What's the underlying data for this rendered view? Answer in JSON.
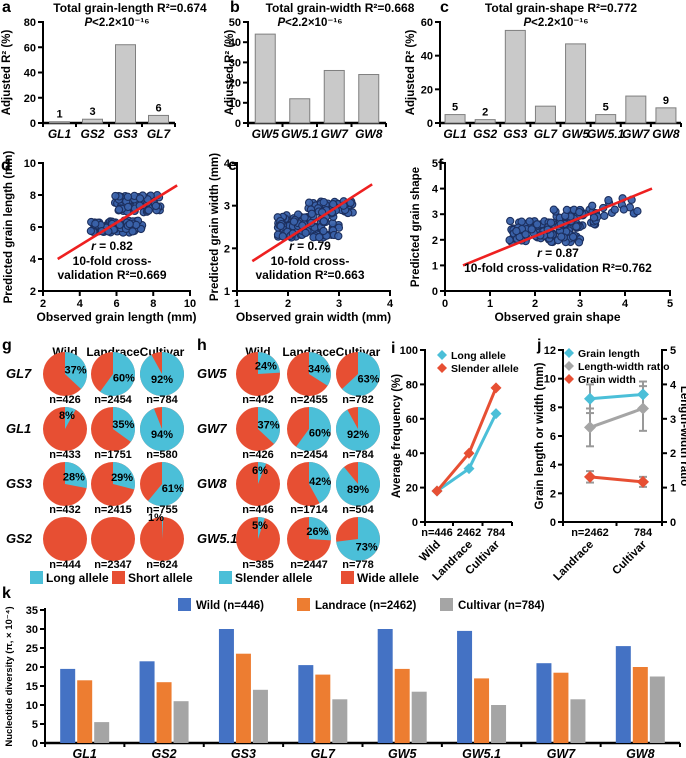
{
  "figure": {
    "letters": {
      "a": "a",
      "b": "b",
      "c": "c",
      "d": "d",
      "e": "e",
      "f": "f",
      "g": "g",
      "h": "h",
      "i": "i",
      "j": "j",
      "k": "k"
    }
  },
  "colors": {
    "cyan": "#4bbfd8",
    "red": "#e74f33",
    "bar_fill": "#c9c9c9",
    "bar_edge": "#7f7f7f",
    "scatter_fill": "#3a62aa",
    "scatter_edge": "#1c2f5e",
    "fit_line": "#ee2020",
    "kblue": "#4472c4",
    "korange": "#ed7d31",
    "kgray": "#a5a5a5",
    "err": "#999999"
  },
  "chart_data": [
    {
      "id": "a",
      "type": "bar",
      "title": "Total grain-length R²=0.674",
      "pvalue": "P<2.2×10⁻¹⁶",
      "ylabel": "Adjusted R² (%)",
      "ylim": [
        0,
        80
      ],
      "yticks": [
        0,
        20,
        40,
        60,
        80
      ],
      "categories": [
        "GL1",
        "GS2",
        "GS3",
        "GL7"
      ],
      "values": [
        1,
        3,
        62,
        6
      ],
      "bar_labels": [
        "1",
        "3",
        "",
        "6"
      ]
    },
    {
      "id": "b",
      "type": "bar",
      "title": "Total grain-width R²=0.668",
      "pvalue": "P<2.2×10⁻¹⁶",
      "ylabel": "Adjusted R² (%)",
      "ylim": [
        0,
        50
      ],
      "yticks": [
        0,
        10,
        20,
        30,
        40,
        50
      ],
      "categories": [
        "GW5",
        "GW5.1",
        "GW7",
        "GW8"
      ],
      "values": [
        44,
        12,
        26,
        24
      ],
      "bar_labels": [
        "",
        "",
        "",
        ""
      ]
    },
    {
      "id": "c",
      "type": "bar",
      "title": "Total grain-shape R²=0.772",
      "pvalue": "P<2.2×10⁻¹⁶",
      "ylabel": "Adjusted R² (%)",
      "ylim": [
        0,
        60
      ],
      "yticks": [
        0,
        20,
        40,
        60
      ],
      "categories": [
        "GL1",
        "GS2",
        "GS3",
        "GL7",
        "GW5",
        "GW5.1",
        "GW7",
        "GW8"
      ],
      "values": [
        5,
        2,
        55,
        10,
        47,
        5,
        16,
        9
      ],
      "bar_labels": [
        "5",
        "2",
        "",
        "",
        "",
        "5",
        "",
        "9"
      ]
    },
    {
      "id": "d",
      "type": "scatter",
      "xlabel": "Observed grain length (mm)",
      "ylabel": "Predicted grain length (mm)",
      "xlim": [
        2,
        10
      ],
      "ylim": [
        2,
        10
      ],
      "xticks": [
        2,
        4,
        6,
        8,
        10
      ],
      "yticks": [
        2,
        4,
        6,
        8,
        10
      ],
      "r_label": "r = 0.82",
      "cv_lines": [
        "10-fold cross-",
        "validation R²=0.669"
      ],
      "fit_line": [
        [
          2.8,
          4.0
        ],
        [
          9.3,
          8.6
        ]
      ],
      "seed": 11,
      "clusters": [
        {
          "n": 100,
          "x": [
            4.6,
            7.4
          ],
          "y": [
            5.65,
            6.4
          ]
        },
        {
          "n": 60,
          "x": [
            5.9,
            8.4
          ],
          "y": [
            6.9,
            8.0
          ]
        }
      ]
    },
    {
      "id": "e",
      "type": "scatter",
      "xlabel": "Observed grain width (mm)",
      "ylabel": "Predicted grain width (mm)",
      "xlim": [
        1,
        4
      ],
      "ylim": [
        1,
        4
      ],
      "xticks": [
        1,
        2,
        3,
        4
      ],
      "yticks": [
        1,
        2,
        3,
        4
      ],
      "r_label": "r = 0.79",
      "cv_lines": [
        "10-fold cross-",
        "validation R²=0.663"
      ],
      "fit_line": [
        [
          1.3,
          1.7
        ],
        [
          3.65,
          3.5
        ]
      ],
      "seed": 22,
      "clusters": [
        {
          "n": 105,
          "x": [
            1.8,
            3.0
          ],
          "y": [
            2.25,
            2.8
          ]
        },
        {
          "n": 50,
          "x": [
            2.4,
            3.3
          ],
          "y": [
            2.8,
            3.12
          ]
        },
        {
          "n": 5,
          "x": [
            1.72,
            1.95
          ],
          "y": [
            2.5,
            2.75
          ]
        }
      ]
    },
    {
      "id": "f",
      "type": "scatter",
      "xlabel": "Observed grain shape",
      "ylabel": "Predicted grain shape",
      "xlim": [
        0,
        5
      ],
      "ylim": [
        0,
        5
      ],
      "xticks": [
        0,
        1,
        2,
        3,
        4,
        5
      ],
      "yticks": [
        0,
        1,
        2,
        3,
        4,
        5
      ],
      "r_label": "r = 0.87",
      "cv_lines": [
        "10-fold cross-validation R²=0.762"
      ],
      "fit_line": [
        [
          0.4,
          1.0
        ],
        [
          4.6,
          4.0
        ]
      ],
      "seed": 33,
      "clusters": [
        {
          "n": 115,
          "x": [
            1.4,
            3.0
          ],
          "y": [
            1.9,
            2.75
          ]
        },
        {
          "n": 45,
          "x": [
            2.4,
            3.4
          ],
          "y": [
            2.5,
            3.2
          ]
        },
        {
          "n": 16,
          "x": [
            3.2,
            4.45
          ],
          "y": [
            2.85,
            3.65
          ]
        }
      ]
    },
    {
      "id": "g",
      "type": "pie_grid",
      "columns": [
        "Wild",
        "Landrace",
        "Cultivar"
      ],
      "rows": [
        {
          "gene": "GL7",
          "pct": [
            37,
            60,
            92
          ],
          "n": [
            "n=426",
            "n=2454",
            "n=784"
          ]
        },
        {
          "gene": "GL1",
          "pct": [
            8,
            35,
            94
          ],
          "n": [
            "n=433",
            "n=1751",
            "n=580"
          ]
        },
        {
          "gene": "GS3",
          "pct": [
            28,
            29,
            61
          ],
          "n": [
            "n=432",
            "n=2415",
            "n=755"
          ]
        },
        {
          "gene": "GS2",
          "pct": [
            0,
            0,
            1
          ],
          "n": [
            "n=444",
            "n=2347",
            "n=624"
          ]
        }
      ],
      "legend": [
        {
          "label": "Long allele",
          "color_key": "cyan"
        },
        {
          "label": "Short allele",
          "color_key": "red"
        }
      ]
    },
    {
      "id": "h",
      "type": "pie_grid",
      "columns": [
        "Wild",
        "Landrace",
        "Cultivar"
      ],
      "rows": [
        {
          "gene": "GW5",
          "pct": [
            24,
            34,
            63
          ],
          "n": [
            "n=442",
            "n=2455",
            "n=782"
          ]
        },
        {
          "gene": "GW7",
          "pct": [
            37,
            60,
            92
          ],
          "n": [
            "n=426",
            "n=2454",
            "n=784"
          ]
        },
        {
          "gene": "GW8",
          "pct": [
            6,
            42,
            89
          ],
          "n": [
            "n=446",
            "n=1714",
            "n=504"
          ]
        },
        {
          "gene": "GW5.1",
          "pct": [
            5,
            26,
            73
          ],
          "n": [
            "n=385",
            "n=2447",
            "n=778"
          ]
        }
      ],
      "legend": [
        {
          "label": "Slender allele",
          "color_key": "cyan"
        },
        {
          "label": "Wide allele",
          "color_key": "red"
        }
      ]
    },
    {
      "id": "i",
      "type": "line",
      "ylabel": "Average frequency (%)",
      "ylim": [
        0,
        100
      ],
      "yticks": [
        0,
        20,
        40,
        60,
        80,
        100
      ],
      "x_n_labels": [
        "n=446",
        "2462",
        "784"
      ],
      "x_cat_labels": [
        "Wild",
        "Landrace",
        "Cultivar"
      ],
      "series": [
        {
          "name": "Long allele",
          "color_key": "cyan",
          "values": [
            18,
            31,
            63
          ]
        },
        {
          "name": "Slender allele",
          "color_key": "red",
          "values": [
            18,
            40,
            78
          ]
        }
      ]
    },
    {
      "id": "j",
      "type": "errline",
      "ylabel_left": "Grain length or width (mm)",
      "ylabel_right": "Length-width ratio",
      "ylim_left": [
        0,
        12
      ],
      "yticks_left": [
        0,
        2,
        4,
        6,
        8,
        10,
        12
      ],
      "ylim_right": [
        0,
        5
      ],
      "yticks_right": [
        0,
        1,
        2,
        3,
        4,
        5
      ],
      "x_n_labels": [
        "n=2462",
        "784"
      ],
      "x_cat_labels": [
        "Landrace",
        "Cultivar"
      ],
      "series": [
        {
          "name": "Grain length",
          "color_key": "cyan",
          "axis": "left",
          "values": [
            8.6,
            8.9
          ],
          "errors": [
            1.0,
            0.9
          ]
        },
        {
          "name": "Length-width ratio",
          "color_key": "kgray",
          "axis": "right",
          "values": [
            2.75,
            3.3
          ],
          "errors": [
            0.55,
            0.65
          ]
        },
        {
          "name": "Grain width",
          "color_key": "red",
          "axis": "left",
          "values": [
            3.15,
            2.8
          ],
          "errors": [
            0.4,
            0.35
          ]
        }
      ]
    },
    {
      "id": "k",
      "type": "grouped_bar",
      "ylabel": "Nucleotide diversity (π, × 10⁻⁴)",
      "ylim": [
        0,
        35
      ],
      "yticks": [
        0,
        5,
        10,
        15,
        20,
        25,
        30,
        35
      ],
      "categories": [
        "GL1",
        "GS2",
        "GS3",
        "GL7",
        "GW5",
        "GW5.1",
        "GW7",
        "GW8"
      ],
      "series": [
        {
          "name": "Wild (n=446)",
          "color_key": "kblue",
          "values": [
            19.5,
            21.5,
            30,
            20.5,
            30,
            29.5,
            21,
            25.5
          ]
        },
        {
          "name": "Landrace (n=2462)",
          "color_key": "korange",
          "values": [
            16.5,
            16,
            23.5,
            18,
            19.5,
            17,
            18.5,
            20
          ]
        },
        {
          "name": "Cultivar (n=784)",
          "color_key": "kgray",
          "values": [
            5.5,
            11,
            14,
            11.5,
            13.5,
            10,
            11.5,
            17.5
          ]
        }
      ]
    }
  ]
}
